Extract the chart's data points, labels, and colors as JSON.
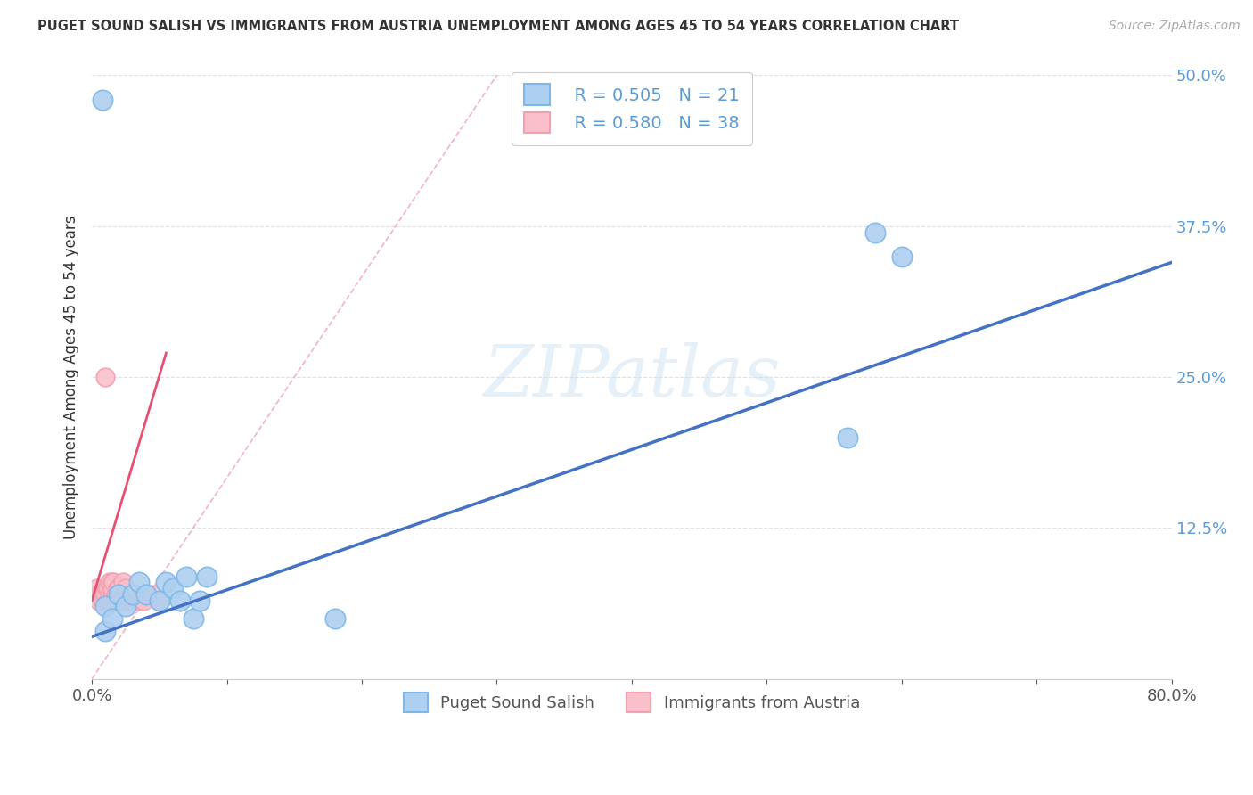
{
  "title": "PUGET SOUND SALISH VS IMMIGRANTS FROM AUSTRIA UNEMPLOYMENT AMONG AGES 45 TO 54 YEARS CORRELATION CHART",
  "source": "Source: ZipAtlas.com",
  "ylabel": "Unemployment Among Ages 45 to 54 years",
  "xlim": [
    0.0,
    0.8
  ],
  "ylim": [
    0.0,
    0.5
  ],
  "xticks": [
    0.0,
    0.1,
    0.2,
    0.3,
    0.4,
    0.5,
    0.6,
    0.7,
    0.8
  ],
  "ytick_positions": [
    0.0,
    0.125,
    0.25,
    0.375,
    0.5
  ],
  "ytick_labels": [
    "",
    "12.5%",
    "25.0%",
    "37.5%",
    "50.0%"
  ],
  "blue_color": "#7eb8e8",
  "blue_fill": "#aed0f0",
  "pink_color": "#f4a0b0",
  "pink_fill": "#f9c0cc",
  "line_blue": "#4472c4",
  "line_pink": "#e85070",
  "watermark": "ZIPatlas",
  "legend_r_blue": "R = 0.505",
  "legend_n_blue": "N = 21",
  "legend_r_pink": "R = 0.580",
  "legend_n_pink": "N = 38",
  "blue_scatter_x": [
    0.008,
    0.01,
    0.01,
    0.015,
    0.02,
    0.025,
    0.03,
    0.035,
    0.04,
    0.05,
    0.055,
    0.06,
    0.065,
    0.07,
    0.075,
    0.08,
    0.085,
    0.18,
    0.56,
    0.58,
    0.6
  ],
  "blue_scatter_y": [
    0.48,
    0.06,
    0.04,
    0.05,
    0.07,
    0.06,
    0.07,
    0.08,
    0.07,
    0.065,
    0.08,
    0.075,
    0.065,
    0.085,
    0.05,
    0.065,
    0.085,
    0.05,
    0.2,
    0.37,
    0.35
  ],
  "pink_scatter_x": [
    0.003,
    0.004,
    0.005,
    0.006,
    0.007,
    0.008,
    0.009,
    0.01,
    0.01,
    0.011,
    0.012,
    0.012,
    0.013,
    0.013,
    0.014,
    0.015,
    0.015,
    0.015,
    0.016,
    0.017,
    0.018,
    0.019,
    0.02,
    0.02,
    0.02,
    0.022,
    0.023,
    0.025,
    0.025,
    0.027,
    0.028,
    0.03,
    0.032,
    0.035,
    0.038,
    0.04,
    0.045,
    0.05
  ],
  "pink_scatter_y": [
    0.07,
    0.075,
    0.065,
    0.07,
    0.07,
    0.065,
    0.07,
    0.25,
    0.07,
    0.075,
    0.075,
    0.065,
    0.07,
    0.08,
    0.065,
    0.08,
    0.07,
    0.075,
    0.08,
    0.065,
    0.07,
    0.075,
    0.075,
    0.065,
    0.07,
    0.065,
    0.08,
    0.065,
    0.075,
    0.065,
    0.07,
    0.065,
    0.07,
    0.065,
    0.065,
    0.07,
    0.07,
    0.065
  ],
  "blue_line_x": [
    0.0,
    0.8
  ],
  "blue_line_y": [
    0.035,
    0.345
  ],
  "pink_line_x": [
    0.0,
    0.055
  ],
  "pink_line_y": [
    0.065,
    0.27
  ],
  "ref_line_x": [
    0.0,
    0.3
  ],
  "ref_line_y": [
    0.0,
    0.5
  ],
  "ref_line_color": "#f4a0b0",
  "background_color": "#ffffff",
  "grid_color": "#cccccc"
}
